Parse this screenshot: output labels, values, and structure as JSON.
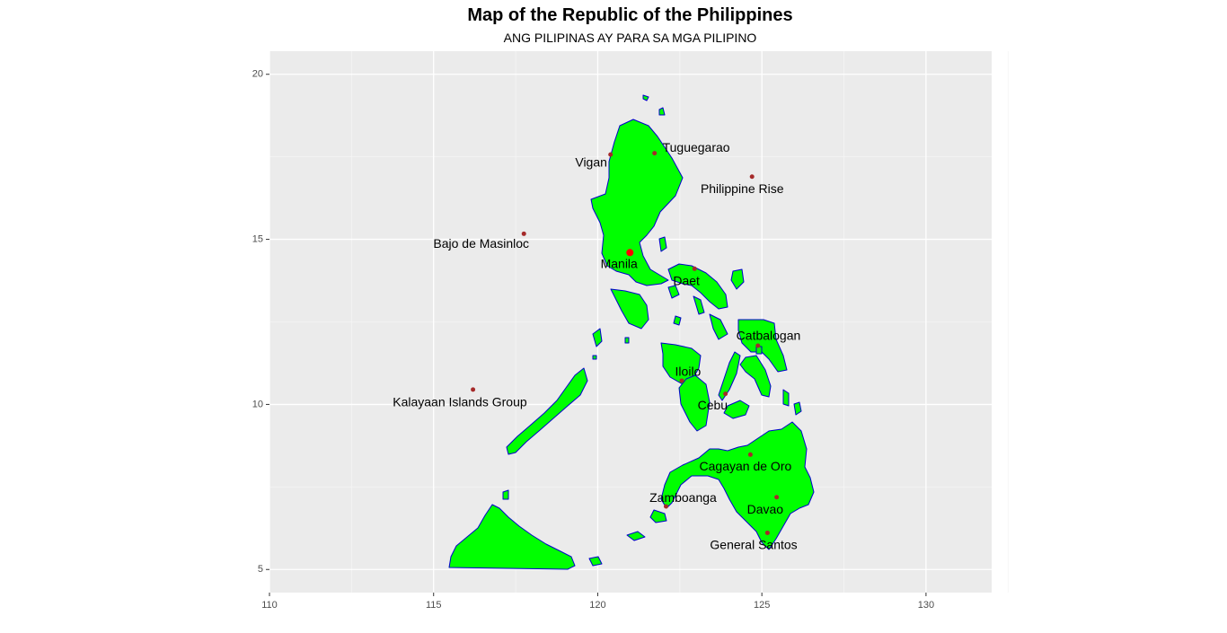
{
  "map": {
    "title": "Map of the Republic of the Philippines",
    "subtitle": "ANG PILIPINAS AY PARA SA MGA PILIPINO",
    "colors": {
      "panel": "#ebebeb",
      "grid_major": "#ffffff",
      "grid_minor": "#f5f5f5",
      "land_fill": "#00ff00",
      "land_border": "#0000cd",
      "point": "#a52a2a",
      "capital_point": "#ff0000"
    }
  },
  "chart_data": {
    "type": "scatter",
    "xlim": [
      110,
      132
    ],
    "ylim": [
      4.3,
      20.7
    ],
    "x_ticks": [
      110,
      115,
      120,
      125,
      130
    ],
    "y_ticks": [
      5,
      10,
      15,
      20
    ],
    "grid": true,
    "xlabel": "",
    "ylabel": "",
    "points": [
      {
        "name": "Tuguegarao",
        "lon": 121.73,
        "lat": 17.61,
        "label_lon": 123.0,
        "label_lat": 17.75
      },
      {
        "name": "Vigan",
        "lon": 120.39,
        "lat": 17.57,
        "label_lon": 119.8,
        "label_lat": 17.3
      },
      {
        "name": "Philippine Rise",
        "lon": 124.7,
        "lat": 16.9,
        "label_lon": 124.4,
        "label_lat": 16.5
      },
      {
        "name": "Bajo de Masinloc",
        "lon": 117.75,
        "lat": 15.17,
        "label_lon": 116.45,
        "label_lat": 14.85
      },
      {
        "name": "Manila",
        "lon": 120.98,
        "lat": 14.6,
        "label_lon": 120.65,
        "label_lat": 14.23,
        "capital": true
      },
      {
        "name": "Daet",
        "lon": 122.95,
        "lat": 14.11,
        "label_lon": 122.7,
        "label_lat": 13.72
      },
      {
        "name": "Catbalogan",
        "lon": 124.88,
        "lat": 11.78,
        "label_lon": 125.2,
        "label_lat": 12.05
      },
      {
        "name": "Iloilo",
        "lon": 122.56,
        "lat": 10.72,
        "label_lon": 122.75,
        "label_lat": 10.97
      },
      {
        "name": "Kalayaan Islands Group",
        "lon": 116.2,
        "lat": 10.45,
        "label_lon": 115.8,
        "label_lat": 10.05
      },
      {
        "name": "Cebu",
        "lon": 123.89,
        "lat": 10.32,
        "label_lon": 123.5,
        "label_lat": 9.95
      },
      {
        "name": "Cagayan de Oro",
        "lon": 124.65,
        "lat": 8.48,
        "label_lon": 124.5,
        "label_lat": 8.1
      },
      {
        "name": "Davao",
        "lon": 125.45,
        "lat": 7.19,
        "label_lon": 125.1,
        "label_lat": 6.8
      },
      {
        "name": "Zamboanga",
        "lon": 122.08,
        "lat": 6.91,
        "label_lon": 122.6,
        "label_lat": 7.15
      },
      {
        "name": "General Santos",
        "lon": 125.17,
        "lat": 6.11,
        "label_lon": 124.75,
        "label_lat": 5.72
      }
    ]
  }
}
